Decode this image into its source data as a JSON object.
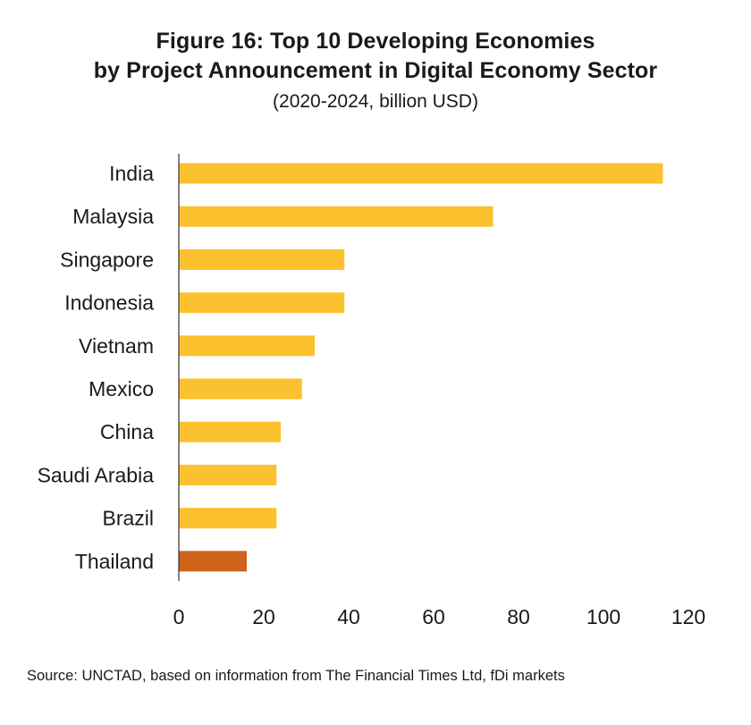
{
  "chart_data": {
    "type": "bar",
    "orientation": "horizontal",
    "title_lines": [
      "Figure 16: Top 10 Developing Economies",
      "by Project Announcement in Digital Economy Sector"
    ],
    "subtitle": "(2020-2024, billion USD)",
    "categories": [
      "India",
      "Malaysia",
      "Singapore",
      "Indonesia",
      "Vietnam",
      "Mexico",
      "China",
      "Saudi Arabia",
      "Brazil",
      "Thailand"
    ],
    "values": [
      114,
      74,
      39,
      39,
      32,
      29,
      24,
      23,
      23,
      16
    ],
    "highlight": [
      "Thailand"
    ],
    "xlim": [
      0,
      120
    ],
    "xticks": [
      "0",
      "20",
      "40",
      "60",
      "80",
      "100",
      "120"
    ],
    "xlabel": "",
    "ylabel": "",
    "grid": false,
    "colors": {
      "bar": "#FCC12E",
      "highlight": "#CF631A",
      "axis": "#333333"
    }
  },
  "source": "Source: UNCTAD, based on information from The Financial Times Ltd, fDi markets"
}
